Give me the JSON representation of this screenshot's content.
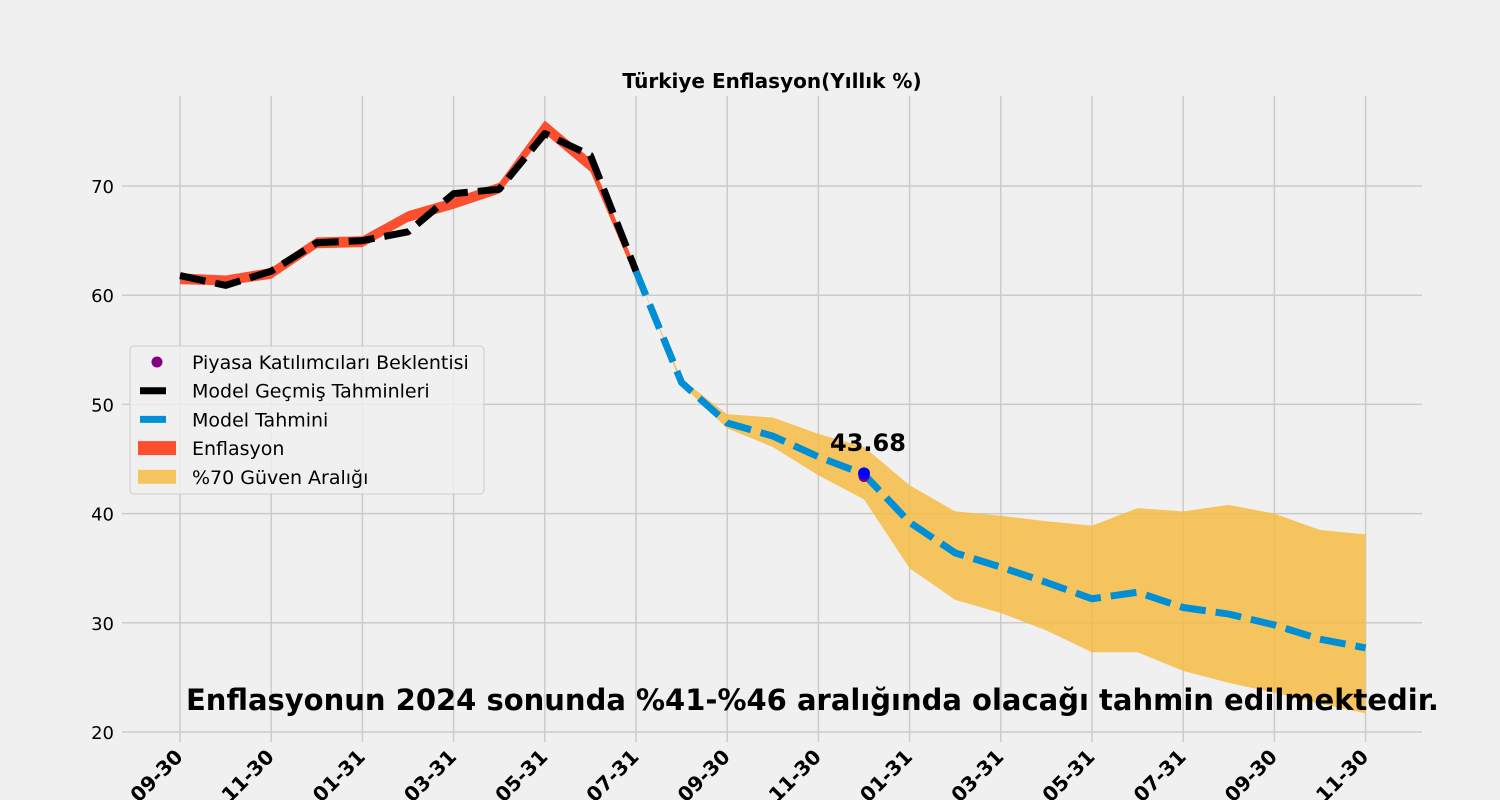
{
  "chart_data": {
    "type": "line",
    "title": "Türkiye Enflasyon(Yıllık %)",
    "ylim": [
      20,
      78
    ],
    "y_ticks": [
      20,
      30,
      40,
      50,
      60,
      70
    ],
    "x_tick_labels": [
      "09-30",
      "11-30",
      "01-31",
      "03-31",
      "05-31",
      "07-31",
      "09-30",
      "11-30",
      "01-31",
      "03-31",
      "05-31",
      "07-31",
      "09-30",
      "11-30"
    ],
    "x_dates": [
      "2022-09-30",
      "2022-10-31",
      "2022-11-30",
      "2022-12-31",
      "2023-01-31",
      "2023-02-28",
      "2023-03-31",
      "2023-04-30",
      "2023-05-31",
      "2023-06-30",
      "2023-07-31",
      "2023-08-31",
      "2023-09-30",
      "2023-10-31",
      "2023-11-30",
      "2023-12-31",
      "2024-01-31",
      "2024-02-29",
      "2024-03-31",
      "2024-04-30",
      "2024-05-31",
      "2024-06-30",
      "2024-07-31",
      "2024-08-31",
      "2024-09-30",
      "2024-10-31",
      "2024-11-30",
      "2024-12-31",
      "2025-01-31",
      "2025-02-28",
      "2025-03-31",
      "2025-04-30",
      "2025-05-31",
      "2025-06-30",
      "2025-07-31",
      "2025-08-31",
      "2025-09-30",
      "2025-10-31",
      "2025-11-30"
    ],
    "grid": true,
    "legend_position": "center-left",
    "series": [
      {
        "name": "Enflasyon",
        "color": "#fc4f30",
        "band": true,
        "x_index": [
          0,
          1,
          2,
          3,
          4,
          5,
          6,
          7,
          8,
          9,
          10
        ],
        "lower": [
          61.0,
          60.9,
          61.5,
          64.3,
          64.4,
          66.7,
          67.9,
          69.3,
          74.8,
          71.3,
          61.5
        ],
        "upper": [
          62.0,
          61.8,
          62.5,
          65.3,
          65.4,
          67.7,
          68.9,
          70.3,
          76.0,
          72.5,
          62.5
        ]
      },
      {
        "name": "Model Geçmiş Tahminleri",
        "color": "#000000",
        "style": "dashed",
        "x_index": [
          0,
          1,
          2,
          3,
          4,
          5,
          6,
          7,
          8,
          9,
          10
        ],
        "values": [
          61.8,
          60.9,
          62.2,
          64.8,
          65.0,
          65.8,
          69.3,
          69.7,
          74.8,
          72.8,
          62.2
        ]
      },
      {
        "name": "Model Tahmini",
        "color": "#008fd5",
        "style": "dashed",
        "x_index": [
          10,
          11,
          12,
          13,
          14,
          15,
          16,
          17,
          18,
          19,
          20,
          21,
          22,
          23,
          24,
          25,
          26
        ],
        "values": [
          62.2,
          52.0,
          48.3,
          47.1,
          45.2,
          43.6,
          39.2,
          36.4,
          35.1,
          33.7,
          32.2,
          32.8,
          31.4,
          30.8,
          29.8,
          28.5,
          27.7
        ]
      },
      {
        "name": "%70 Güven Aralığı",
        "color": "#f6b93b",
        "band": true,
        "x_index": [
          10,
          11,
          12,
          13,
          14,
          15,
          16,
          17,
          18,
          19,
          20,
          21,
          22,
          23,
          24,
          25,
          26
        ],
        "lower": [
          62.2,
          51.8,
          47.8,
          46.1,
          43.5,
          41.3,
          35.0,
          32.1,
          30.9,
          29.3,
          27.3,
          27.3,
          25.6,
          24.5,
          23.6,
          22.6,
          21.7
        ],
        "upper": [
          62.2,
          52.3,
          49.1,
          48.8,
          47.3,
          46.1,
          42.6,
          40.2,
          39.8,
          39.3,
          38.9,
          40.5,
          40.2,
          40.8,
          40.0,
          38.5,
          38.1
        ]
      },
      {
        "name": "Piyasa Katılımcıları Beklentisi",
        "color": "#800080",
        "marker": "circle",
        "x_index": [
          15
        ],
        "values": [
          43.4
        ]
      }
    ],
    "extra_points": [
      {
        "x_index": 15,
        "value": 43.68,
        "color": "#0000ff"
      }
    ],
    "annotations": [
      {
        "text": "43.68",
        "x_index": 15,
        "value": 43.68
      }
    ],
    "footer": "Enflasyonun 2024 sonunda %41-%46 aralığında olacağı tahmin edilmektedir."
  }
}
